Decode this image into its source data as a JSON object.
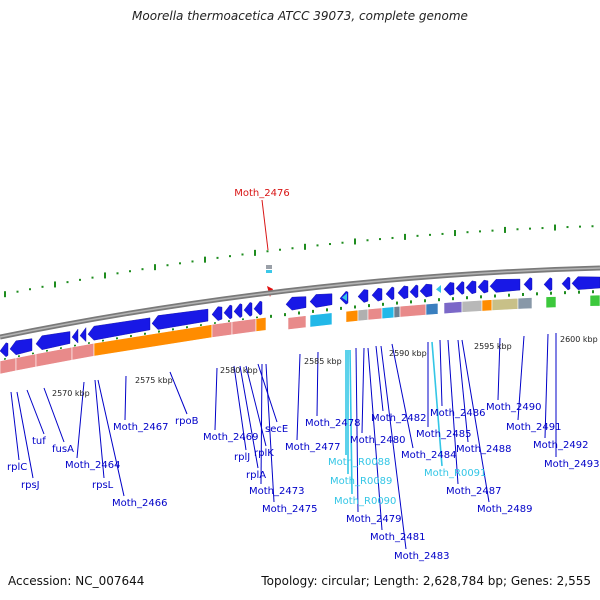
{
  "header": {
    "title": "Moorella thermoacetica ATCC 39073, complete genome"
  },
  "footer": {
    "accession": "Accession: NC_007644",
    "summary": "Topology: circular; Length: 2,628,784 bp; Genes: 2,555"
  },
  "highlighted_gene": "Moth_2476",
  "kbp_labels": [
    "2570 kbp",
    "2575 kbp",
    "2580 kbp",
    "2585 kbp",
    "2590 kbp",
    "2595 kbp",
    "2600 kbp"
  ],
  "gene_labels": [
    {
      "text": "rplC",
      "type": "protein"
    },
    {
      "text": "rpsJ",
      "type": "protein"
    },
    {
      "text": "tuf",
      "type": "protein"
    },
    {
      "text": "fusA",
      "type": "protein"
    },
    {
      "text": "Moth_2464",
      "type": "protein"
    },
    {
      "text": "rpsL",
      "type": "protein"
    },
    {
      "text": "Moth_2466",
      "type": "protein"
    },
    {
      "text": "Moth_2467",
      "type": "protein"
    },
    {
      "text": "rpoB",
      "type": "protein"
    },
    {
      "text": "Moth_2469",
      "type": "protein"
    },
    {
      "text": "rplJ",
      "type": "protein"
    },
    {
      "text": "rplA",
      "type": "protein"
    },
    {
      "text": "rplK",
      "type": "protein"
    },
    {
      "text": "secE",
      "type": "protein"
    },
    {
      "text": "Moth_2473",
      "type": "protein"
    },
    {
      "text": "Moth_2475",
      "type": "protein"
    },
    {
      "text": "Moth_2477",
      "type": "protein"
    },
    {
      "text": "Moth_2478",
      "type": "protein"
    },
    {
      "text": "Moth_R0088",
      "type": "rna"
    },
    {
      "text": "Moth_R0089",
      "type": "rna"
    },
    {
      "text": "Moth_R0090",
      "type": "rna"
    },
    {
      "text": "Moth_2479",
      "type": "protein"
    },
    {
      "text": "Moth_2480",
      "type": "protein"
    },
    {
      "text": "Moth_2481",
      "type": "protein"
    },
    {
      "text": "Moth_2482",
      "type": "protein"
    },
    {
      "text": "Moth_2483",
      "type": "protein"
    },
    {
      "text": "Moth_2484",
      "type": "protein"
    },
    {
      "text": "Moth_R0091",
      "type": "rna"
    },
    {
      "text": "Moth_2485",
      "type": "protein"
    },
    {
      "text": "Moth_2486",
      "type": "protein"
    },
    {
      "text": "Moth_2487",
      "type": "protein"
    },
    {
      "text": "Moth_2488",
      "type": "protein"
    },
    {
      "text": "Moth_2489",
      "type": "protein"
    },
    {
      "text": "Moth_2490",
      "type": "protein"
    },
    {
      "text": "Moth_2491",
      "type": "protein"
    },
    {
      "text": "Moth_2492",
      "type": "protein"
    },
    {
      "text": "Moth_2493",
      "type": "protein"
    }
  ],
  "colors": {
    "gene_label": "#0000c8",
    "rna_label": "#33c6e6",
    "highlight": "#d81414",
    "cds_arrow": "#1818e6",
    "backbone": "#808080",
    "tick": "#1e8c1e"
  }
}
